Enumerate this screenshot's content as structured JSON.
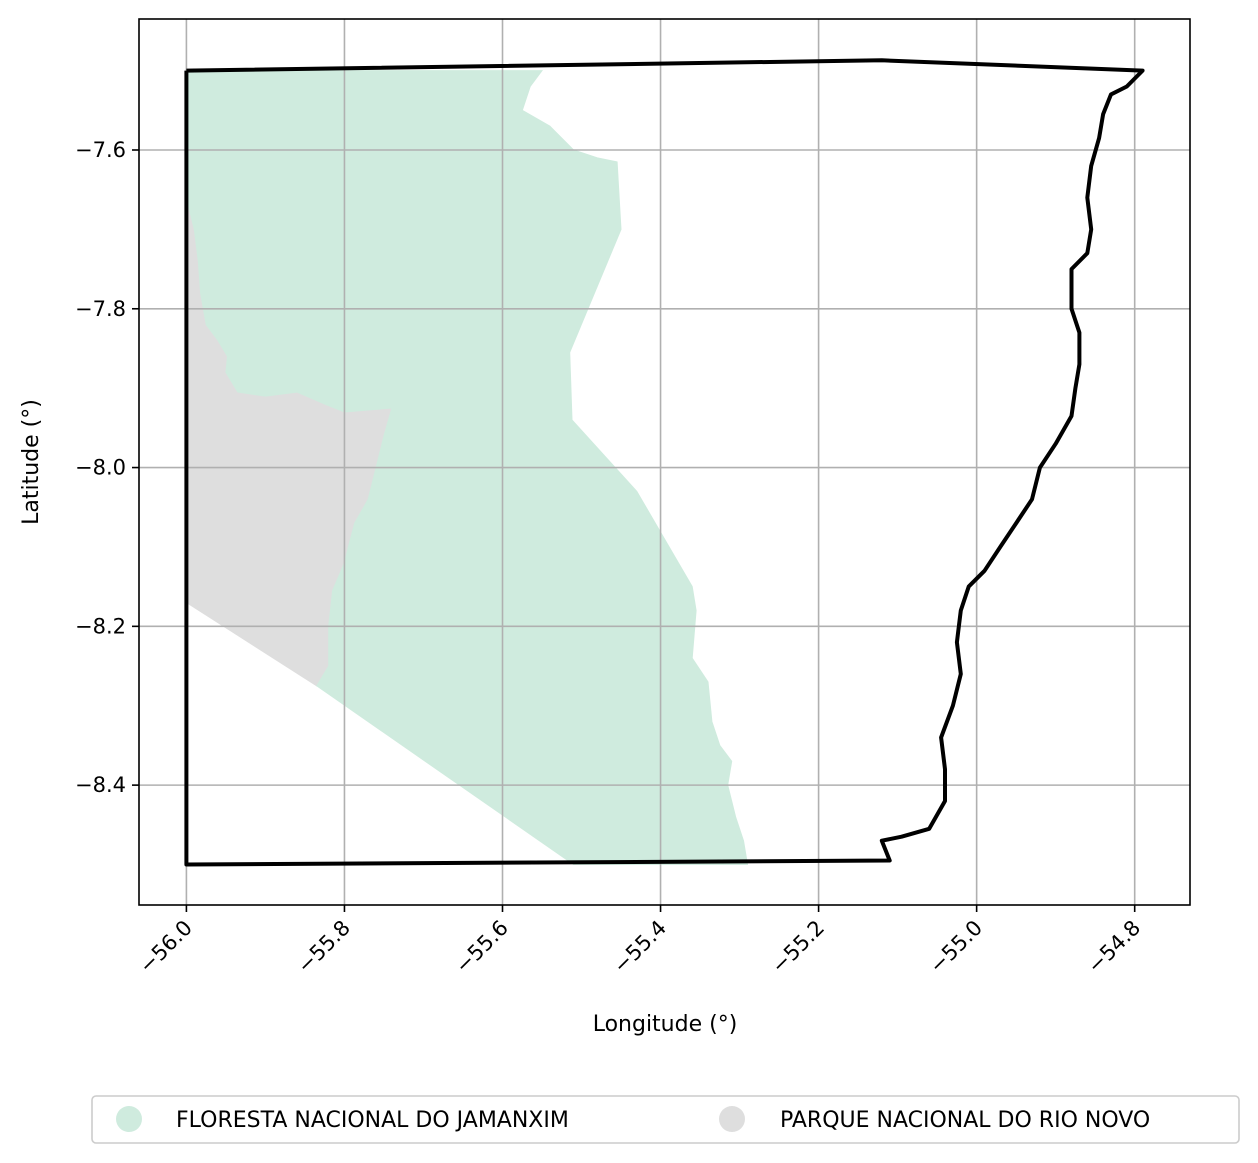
{
  "chart_data": {
    "type": "map",
    "xlabel": "Longitude (°)",
    "ylabel": "Latitude (°)",
    "xlim": [
      -56.06,
      -54.73
    ],
    "ylim": [
      -8.551,
      -7.435
    ],
    "xticks": [
      -56.0,
      -55.8,
      -55.6,
      -55.4,
      -55.2,
      -55.0,
      -54.8
    ],
    "xtick_labels": [
      "−56.0",
      "−55.8",
      "−55.6",
      "−55.4",
      "−55.2",
      "−55.0",
      "−54.8"
    ],
    "yticks": [
      -7.6,
      -7.8,
      -8.0,
      -8.2,
      -8.4
    ],
    "ytick_labels": [
      "−7.6",
      "−7.8",
      "−8.0",
      "−8.2",
      "−8.4"
    ],
    "grid": true,
    "legend": {
      "placement": "bottom-center",
      "items": [
        {
          "label": "FLORESTA NACIONAL DO JAMANXIM",
          "color": "#cfebde"
        },
        {
          "label": "PARQUE NACIONAL DO RIO NOVO",
          "color": "#dedede"
        }
      ]
    },
    "layers": [
      {
        "name": "PARQUE NACIONAL DO RIO NOVO",
        "color": "#dedede",
        "coords": [
          [
            -56.0,
            -7.66
          ],
          [
            -55.99,
            -7.7
          ],
          [
            -55.985,
            -7.74
          ],
          [
            -55.982,
            -7.78
          ],
          [
            -55.975,
            -7.82
          ],
          [
            -55.96,
            -7.84
          ],
          [
            -55.948,
            -7.86
          ],
          [
            -55.95,
            -7.88
          ],
          [
            -55.935,
            -7.905
          ],
          [
            -55.9,
            -7.91
          ],
          [
            -55.86,
            -7.905
          ],
          [
            -55.825,
            -7.92
          ],
          [
            -55.8,
            -7.93
          ],
          [
            -55.74,
            -7.925
          ],
          [
            -55.75,
            -7.96
          ],
          [
            -55.76,
            -8.0
          ],
          [
            -55.77,
            -8.04
          ],
          [
            -55.787,
            -8.07
          ],
          [
            -55.795,
            -8.1
          ],
          [
            -55.8,
            -8.12
          ],
          [
            -55.815,
            -8.155
          ],
          [
            -55.82,
            -8.2
          ],
          [
            -55.82,
            -8.25
          ],
          [
            -55.835,
            -8.275
          ],
          [
            -56.0,
            -8.17
          ]
        ]
      },
      {
        "name": "FLORESTA NACIONAL DO JAMANXIM",
        "color": "#cfebde",
        "coords": [
          [
            -56.0,
            -7.5
          ],
          [
            -55.55,
            -7.5
          ],
          [
            -55.565,
            -7.52
          ],
          [
            -55.575,
            -7.55
          ],
          [
            -55.54,
            -7.57
          ],
          [
            -55.51,
            -7.6
          ],
          [
            -55.48,
            -7.61
          ],
          [
            -55.455,
            -7.615
          ],
          [
            -55.45,
            -7.7
          ],
          [
            -55.515,
            -7.855
          ],
          [
            -55.512,
            -7.94
          ],
          [
            -55.43,
            -8.03
          ],
          [
            -55.36,
            -8.15
          ],
          [
            -55.355,
            -8.18
          ],
          [
            -55.36,
            -8.24
          ],
          [
            -55.34,
            -8.27
          ],
          [
            -55.335,
            -8.32
          ],
          [
            -55.325,
            -8.35
          ],
          [
            -55.31,
            -8.37
          ],
          [
            -55.315,
            -8.4
          ],
          [
            -55.305,
            -8.44
          ],
          [
            -55.295,
            -8.47
          ],
          [
            -55.29,
            -8.5
          ],
          [
            -55.51,
            -8.5
          ],
          [
            -55.835,
            -8.275
          ],
          [
            -55.82,
            -8.25
          ],
          [
            -55.82,
            -8.2
          ],
          [
            -55.815,
            -8.155
          ],
          [
            -55.8,
            -8.12
          ],
          [
            -55.795,
            -8.1
          ],
          [
            -55.787,
            -8.07
          ],
          [
            -55.77,
            -8.04
          ],
          [
            -55.76,
            -8.0
          ],
          [
            -55.75,
            -7.96
          ],
          [
            -55.74,
            -7.925
          ],
          [
            -55.8,
            -7.93
          ],
          [
            -55.825,
            -7.92
          ],
          [
            -55.86,
            -7.905
          ],
          [
            -55.9,
            -7.91
          ],
          [
            -55.935,
            -7.905
          ],
          [
            -55.95,
            -7.88
          ],
          [
            -55.948,
            -7.86
          ],
          [
            -55.96,
            -7.84
          ],
          [
            -55.975,
            -7.82
          ],
          [
            -55.982,
            -7.78
          ],
          [
            -55.985,
            -7.74
          ],
          [
            -55.99,
            -7.7
          ],
          [
            -56.0,
            -7.66
          ]
        ]
      }
    ],
    "boundary": {
      "name": "outline",
      "color": "#000000",
      "coords": [
        [
          -56.0,
          -7.5
        ],
        [
          -55.12,
          -7.487
        ],
        [
          -54.79,
          -7.5
        ],
        [
          -54.81,
          -7.52
        ],
        [
          -54.83,
          -7.53
        ],
        [
          -54.84,
          -7.555
        ],
        [
          -54.845,
          -7.585
        ],
        [
          -54.855,
          -7.62
        ],
        [
          -54.86,
          -7.66
        ],
        [
          -54.855,
          -7.7
        ],
        [
          -54.86,
          -7.73
        ],
        [
          -54.88,
          -7.75
        ],
        [
          -54.88,
          -7.8
        ],
        [
          -54.87,
          -7.83
        ],
        [
          -54.87,
          -7.87
        ],
        [
          -54.875,
          -7.9
        ],
        [
          -54.88,
          -7.935
        ],
        [
          -54.9,
          -7.97
        ],
        [
          -54.92,
          -8.0
        ],
        [
          -54.93,
          -8.04
        ],
        [
          -54.95,
          -8.07
        ],
        [
          -54.97,
          -8.1
        ],
        [
          -54.99,
          -8.13
        ],
        [
          -55.01,
          -8.15
        ],
        [
          -55.02,
          -8.18
        ],
        [
          -55.025,
          -8.22
        ],
        [
          -55.02,
          -8.26
        ],
        [
          -55.03,
          -8.3
        ],
        [
          -55.045,
          -8.34
        ],
        [
          -55.04,
          -8.38
        ],
        [
          -55.04,
          -8.42
        ],
        [
          -55.06,
          -8.455
        ],
        [
          -55.095,
          -8.465
        ],
        [
          -55.12,
          -8.47
        ],
        [
          -55.11,
          -8.495
        ],
        [
          -56.0,
          -8.5
        ],
        [
          -56.0,
          -7.5
        ]
      ]
    }
  }
}
